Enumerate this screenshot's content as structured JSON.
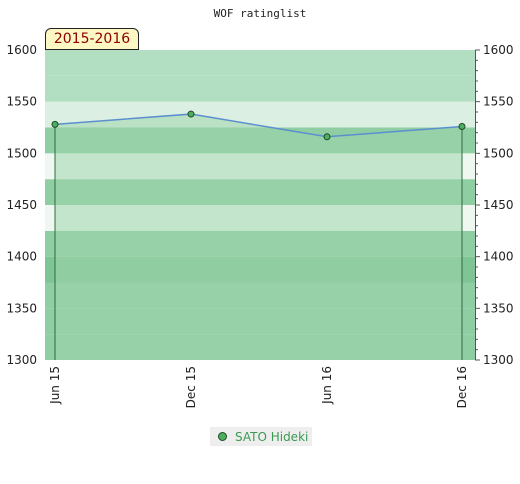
{
  "title": "WOF ratinglist",
  "period_label": "2015-2016",
  "colors": {
    "band_dark": "#7ec495",
    "band_mid": "#8fcda2",
    "band_light": "#b2dfc1",
    "band_pale": "#dbf0e2",
    "band_white": "#eef8f1",
    "line": "#5b8fcf",
    "area": "#9fd5ac",
    "marker": "#4caf60",
    "marker_stroke": "#1e4a24",
    "legend_text": "#3a9a52",
    "period_text": "#8b0000",
    "period_bg": "#fdf7c3"
  },
  "chart_data": {
    "type": "area",
    "title": "WOF ratinglist",
    "categories": [
      "Jun 15",
      "Dec 15",
      "Jun 16",
      "Dec 16"
    ],
    "series": [
      {
        "name": "SATO Hideki",
        "values": [
          1528,
          1538,
          1516,
          1526
        ]
      }
    ],
    "ylim": [
      1300,
      1600
    ],
    "yticks": [
      1300,
      1350,
      1400,
      1450,
      1500,
      1550,
      1600
    ],
    "y_axis_both_sides": true,
    "grid": false,
    "legend_position": "bottom-center",
    "rating_bands": [
      {
        "from": 1300,
        "to": 1325,
        "tone": "mid"
      },
      {
        "from": 1325,
        "to": 1350,
        "tone": "mid"
      },
      {
        "from": 1350,
        "to": 1375,
        "tone": "mid"
      },
      {
        "from": 1375,
        "to": 1400,
        "tone": "dark"
      },
      {
        "from": 1400,
        "to": 1425,
        "tone": "mid"
      },
      {
        "from": 1425,
        "to": 1450,
        "tone": "white"
      },
      {
        "from": 1450,
        "to": 1475,
        "tone": "mid"
      },
      {
        "from": 1475,
        "to": 1500,
        "tone": "white"
      },
      {
        "from": 1500,
        "to": 1525,
        "tone": "mid"
      },
      {
        "from": 1525,
        "to": 1550,
        "tone": "pale"
      },
      {
        "from": 1550,
        "to": 1575,
        "tone": "light"
      },
      {
        "from": 1575,
        "to": 1600,
        "tone": "light"
      }
    ]
  }
}
